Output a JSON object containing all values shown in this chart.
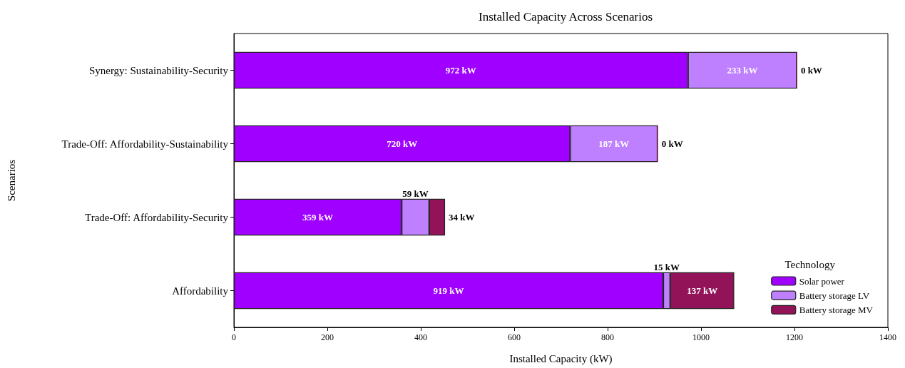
{
  "chart_data": {
    "type": "bar",
    "orientation": "horizontal",
    "stacked": true,
    "title": "Installed Capacity Across Scenarios",
    "xlabel": "Installed Capacity (kW)",
    "ylabel": "Scenarios",
    "legend_title": "Technology",
    "legend": "bottom right",
    "grid": false,
    "categories": [
      "Synergy: Sustainability-Security",
      "Trade-Off: Affordability-Sustainability",
      "Trade-Off: Affordability-Security",
      "Affordability"
    ],
    "xlim": [
      0,
      1400
    ],
    "xticks": [
      0,
      200,
      400,
      600,
      800,
      1000,
      1200,
      1400
    ],
    "series": [
      {
        "name": "Solar power",
        "color": "#9f00ff",
        "values": [
          972,
          720,
          359,
          919
        ],
        "value_labels": [
          "972 kW",
          "720 kW",
          "359 kW",
          "919 kW"
        ]
      },
      {
        "name": "Battery storage LV",
        "color": "#bf80ff",
        "values": [
          233,
          187,
          59,
          15
        ],
        "value_labels": [
          "233 kW",
          "187 kW",
          "59 kW",
          "15 kW"
        ]
      },
      {
        "name": "Battery storage MV",
        "color": "#931359",
        "values": [
          0,
          0,
          34,
          137
        ],
        "value_labels": [
          "0 kW",
          "0 kW",
          "34 kW",
          "137 kW"
        ]
      }
    ]
  }
}
